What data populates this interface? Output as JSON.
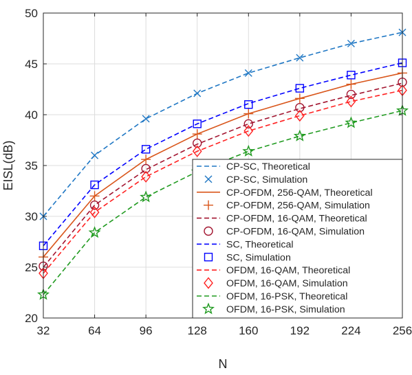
{
  "chart_data": {
    "type": "line",
    "xlabel": "N",
    "ylabel": "EISL(dB)",
    "x": [
      32,
      64,
      96,
      128,
      160,
      192,
      224,
      256
    ],
    "x_ticks": [
      "32",
      "64",
      "96",
      "128",
      "160",
      "192",
      "224",
      "256"
    ],
    "y_ticks": [
      "20",
      "25",
      "30",
      "35",
      "40",
      "45",
      "50"
    ],
    "xlim": [
      32,
      256
    ],
    "ylim": [
      20,
      50
    ],
    "grid": true,
    "legend_position": "bottom-right",
    "series": [
      {
        "name": "CP-SC, Theoretical",
        "kind": "line",
        "style": "dashed",
        "color": "#1f77c4",
        "values": [
          30.0,
          36.0,
          39.6,
          42.1,
          44.1,
          45.6,
          47.0,
          48.1
        ]
      },
      {
        "name": "CP-SC, Simulation",
        "kind": "marker",
        "marker": "x",
        "color": "#1f77c4",
        "values": [
          30.0,
          36.0,
          39.6,
          42.1,
          44.1,
          45.6,
          47.0,
          48.1
        ]
      },
      {
        "name": "CP-OFDM, 256-QAM, Theoretical",
        "kind": "line",
        "style": "solid",
        "color": "#d9561b",
        "values": [
          26.0,
          32.0,
          35.6,
          38.1,
          40.1,
          41.6,
          43.0,
          44.1
        ]
      },
      {
        "name": "CP-OFDM, 256-QAM, Simulation",
        "kind": "marker",
        "marker": "plus",
        "color": "#d9561b",
        "values": [
          26.0,
          32.0,
          35.6,
          38.1,
          40.1,
          41.6,
          43.0,
          44.1
        ]
      },
      {
        "name": "CP-OFDM, 16-QAM, Theoretical",
        "kind": "line",
        "style": "dashed",
        "color": "#a2142f",
        "values": [
          25.0,
          31.1,
          34.6,
          37.1,
          39.1,
          40.6,
          41.9,
          43.1
        ]
      },
      {
        "name": "CP-OFDM, 16-QAM, Simulation",
        "kind": "marker",
        "marker": "circle",
        "color": "#a2142f",
        "values": [
          25.1,
          31.1,
          34.7,
          37.2,
          39.1,
          40.7,
          42.0,
          43.2
        ]
      },
      {
        "name": "SC, Theoretical",
        "kind": "line",
        "style": "dashed",
        "color": "#0000ff",
        "values": [
          27.1,
          33.1,
          36.6,
          39.1,
          41.1,
          42.6,
          43.9,
          45.1
        ]
      },
      {
        "name": "SC, Simulation",
        "kind": "marker",
        "marker": "square",
        "color": "#0000ff",
        "values": [
          27.1,
          33.1,
          36.6,
          39.1,
          41.0,
          42.6,
          43.9,
          45.1
        ]
      },
      {
        "name": "OFDM, 16-QAM, Theoretical",
        "kind": "line",
        "style": "dashed",
        "color": "#ff2020",
        "values": [
          24.4,
          30.4,
          33.9,
          36.4,
          38.4,
          39.9,
          41.3,
          42.4
        ]
      },
      {
        "name": "OFDM, 16-QAM, Simulation",
        "kind": "marker",
        "marker": "diamond",
        "color": "#ff2020",
        "values": [
          24.4,
          30.4,
          33.9,
          36.4,
          38.4,
          39.9,
          41.3,
          42.4
        ]
      },
      {
        "name": "OFDM, 16-PSK, Theoretical",
        "kind": "line",
        "style": "dashed",
        "color": "#1f9a1f",
        "values": [
          22.3,
          28.4,
          31.9,
          34.4,
          36.4,
          37.9,
          39.2,
          40.4
        ]
      },
      {
        "name": "OFDM, 16-PSK, Simulation",
        "kind": "marker",
        "marker": "star",
        "color": "#1f9a1f",
        "values": [
          22.3,
          28.4,
          31.9,
          34.4,
          36.4,
          37.9,
          39.2,
          40.4
        ]
      }
    ]
  }
}
